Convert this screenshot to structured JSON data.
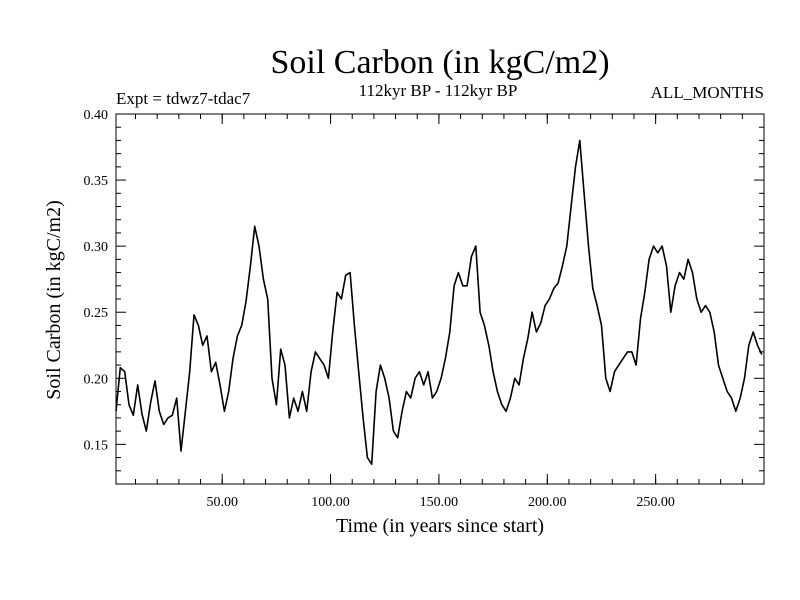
{
  "chart_data": {
    "type": "line",
    "title": "Soil Carbon (in kgC/m2)",
    "subtitle_left": "Expt = tdwz7-tdac7",
    "subtitle_center": "112kyr BP - 112kyr BP",
    "subtitle_right": "ALL_MONTHS",
    "xlabel": "Time (in years since start)",
    "ylabel": "Soil Carbon (in kgC/m2)",
    "xlim": [
      1,
      300
    ],
    "ylim": [
      0.12,
      0.4
    ],
    "x_ticks": [
      50,
      100,
      150,
      200,
      250
    ],
    "x_tick_labels": [
      "50.00",
      "100.00",
      "150.00",
      "200.00",
      "250.00"
    ],
    "y_ticks": [
      0.15,
      0.2,
      0.25,
      0.3,
      0.35,
      0.4
    ],
    "y_tick_labels": [
      "0.15",
      "0.20",
      "0.25",
      "0.30",
      "0.35",
      "0.40"
    ],
    "grid": false,
    "line_color": "#000000",
    "series": [
      {
        "x": [
          1,
          3,
          5,
          7,
          9,
          11,
          13,
          15,
          17,
          19,
          21,
          23,
          25,
          27,
          29,
          31,
          33,
          35,
          37,
          39,
          41,
          43,
          45,
          47,
          49,
          51,
          53,
          55,
          57,
          59,
          61,
          63,
          65,
          67,
          69,
          71,
          73,
          75,
          77,
          79,
          81,
          83,
          85,
          87,
          89,
          91,
          93,
          95,
          97,
          99,
          101,
          103,
          105,
          107,
          109,
          111,
          113,
          115,
          117,
          119,
          121,
          123,
          125,
          127,
          129,
          131,
          133,
          135,
          137,
          139,
          141,
          143,
          145,
          147,
          149,
          151,
          153,
          155,
          157,
          159,
          161,
          163,
          165,
          167,
          169,
          171,
          173,
          175,
          177,
          179,
          181,
          183,
          185,
          187,
          189,
          191,
          193,
          195,
          197,
          199,
          201,
          203,
          205,
          207,
          209,
          211,
          213,
          215,
          217,
          219,
          221,
          223,
          225,
          227,
          229,
          231,
          233,
          235,
          237,
          239,
          241,
          243,
          245,
          247,
          249,
          251,
          253,
          255,
          257,
          259,
          261,
          263,
          265,
          267,
          269,
          271,
          273,
          275,
          277,
          279,
          281,
          283,
          285,
          287,
          289,
          291,
          293,
          295,
          297,
          299
        ],
        "y": [
          0.175,
          0.208,
          0.205,
          0.18,
          0.172,
          0.195,
          0.173,
          0.16,
          0.182,
          0.198,
          0.175,
          0.165,
          0.17,
          0.172,
          0.185,
          0.145,
          0.175,
          0.205,
          0.248,
          0.24,
          0.225,
          0.232,
          0.205,
          0.212,
          0.195,
          0.175,
          0.19,
          0.215,
          0.232,
          0.24,
          0.258,
          0.285,
          0.315,
          0.3,
          0.275,
          0.26,
          0.2,
          0.18,
          0.222,
          0.21,
          0.17,
          0.185,
          0.175,
          0.19,
          0.175,
          0.205,
          0.22,
          0.215,
          0.21,
          0.2,
          0.235,
          0.265,
          0.26,
          0.278,
          0.28,
          0.24,
          0.205,
          0.17,
          0.14,
          0.135,
          0.19,
          0.21,
          0.2,
          0.185,
          0.16,
          0.155,
          0.175,
          0.19,
          0.185,
          0.2,
          0.205,
          0.195,
          0.205,
          0.185,
          0.19,
          0.2,
          0.215,
          0.235,
          0.27,
          0.28,
          0.27,
          0.27,
          0.292,
          0.3,
          0.25,
          0.24,
          0.225,
          0.205,
          0.19,
          0.18,
          0.175,
          0.185,
          0.2,
          0.195,
          0.215,
          0.23,
          0.25,
          0.235,
          0.242,
          0.255,
          0.26,
          0.268,
          0.272,
          0.285,
          0.3,
          0.33,
          0.36,
          0.38,
          0.34,
          0.3,
          0.268,
          0.255,
          0.24,
          0.2,
          0.19,
          0.205,
          0.21,
          0.215,
          0.22,
          0.22,
          0.21,
          0.245,
          0.265,
          0.29,
          0.3,
          0.295,
          0.3,
          0.285,
          0.25,
          0.27,
          0.28,
          0.275,
          0.29,
          0.28,
          0.26,
          0.25,
          0.255,
          0.25,
          0.235,
          0.21,
          0.2,
          0.19,
          0.185,
          0.175,
          0.185,
          0.2,
          0.225,
          0.235,
          0.225,
          0.218
        ]
      }
    ]
  }
}
